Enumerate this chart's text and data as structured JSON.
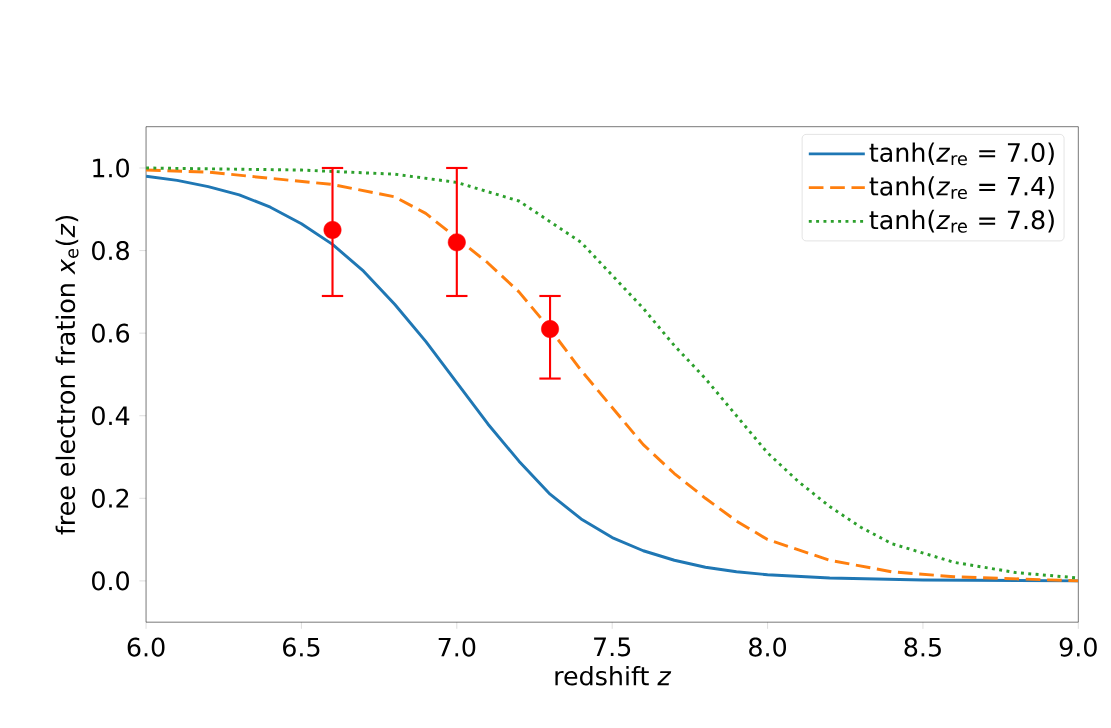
{
  "chart_data": {
    "type": "line",
    "xlabel": "redshift *z*",
    "ylabel": "free electron fration *x*$_{e}$(*z*)",
    "xlim": [
      6.0,
      9.0
    ],
    "ylim": [
      -0.1,
      1.1
    ],
    "xticks": [
      {
        "value": 6,
        "label": "6.0"
      },
      {
        "value": 6.5,
        "label": "6.5"
      },
      {
        "value": 7,
        "label": "7.0"
      },
      {
        "value": 7.5,
        "label": "7.5"
      },
      {
        "value": 8,
        "label": "8.0"
      },
      {
        "value": 8.5,
        "label": "8.5"
      },
      {
        "value": 9,
        "label": "9.0"
      }
    ],
    "yticks": [
      {
        "value": 0,
        "label": "0.0"
      },
      {
        "value": 0.2,
        "label": "0.2"
      },
      {
        "value": 0.4,
        "label": "0.4"
      },
      {
        "value": 0.6,
        "label": "0.6"
      },
      {
        "value": 0.8,
        "label": "0.8"
      },
      {
        "value": 1,
        "label": "1.0"
      }
    ],
    "legend": "top right",
    "series": [
      {
        "name": "tanh(*z*$_{re}$ = 7.0)",
        "color": "#1f77b4",
        "line_style": "solid",
        "x": [
          6.0,
          6.1,
          6.2,
          6.3,
          6.4,
          6.5,
          6.6,
          6.7,
          6.8,
          6.9,
          7.0,
          7.1,
          7.2,
          7.3,
          7.4,
          7.5,
          7.6,
          7.7,
          7.8,
          7.9,
          8.0,
          8.2,
          8.5,
          9.0
        ],
        "values": [
          0.98,
          0.97,
          0.955,
          0.935,
          0.905,
          0.865,
          0.815,
          0.75,
          0.67,
          0.58,
          0.48,
          0.38,
          0.29,
          0.21,
          0.15,
          0.105,
          0.073,
          0.05,
          0.033,
          0.022,
          0.015,
          0.007,
          0.002,
          0.0
        ]
      },
      {
        "name": "tanh(*z*$_{re}$ = 7.4)",
        "color": "#ff7f0e",
        "line_style": "dashed",
        "x": [
          6.0,
          6.2,
          6.4,
          6.6,
          6.8,
          6.9,
          7.1,
          7.2,
          7.3,
          7.4,
          7.5,
          7.6,
          7.7,
          7.8,
          7.9,
          8.0,
          8.2,
          8.4,
          8.6,
          9.0
        ],
        "values": [
          0.995,
          0.99,
          0.975,
          0.96,
          0.93,
          0.89,
          0.77,
          0.7,
          0.61,
          0.51,
          0.42,
          0.33,
          0.26,
          0.2,
          0.145,
          0.1,
          0.05,
          0.022,
          0.01,
          0.0
        ]
      },
      {
        "name": "tanh(*z*$_{re}$ = 7.8)",
        "color": "#2ca02c",
        "line_style": "dotted",
        "x": [
          6.0,
          6.5,
          6.8,
          7.0,
          7.2,
          7.3,
          7.4,
          7.5,
          7.6,
          7.7,
          7.8,
          7.9,
          8.0,
          8.1,
          8.2,
          8.3,
          8.4,
          8.6,
          8.8,
          9.0
        ],
        "values": [
          1.0,
          0.995,
          0.985,
          0.965,
          0.92,
          0.87,
          0.82,
          0.74,
          0.66,
          0.57,
          0.49,
          0.4,
          0.31,
          0.24,
          0.18,
          0.13,
          0.09,
          0.045,
          0.02,
          0.007
        ]
      },
      {
        "type": "scatter",
        "color": "#ff0000",
        "marker": "circle",
        "x": [
          6.6,
          7.0,
          7.3
        ],
        "values": [
          0.85,
          0.82,
          0.61
        ],
        "errors": [
          [
            0.69,
            1.0
          ],
          [
            0.69,
            1.0
          ],
          [
            0.49,
            0.69
          ]
        ]
      }
    ]
  }
}
